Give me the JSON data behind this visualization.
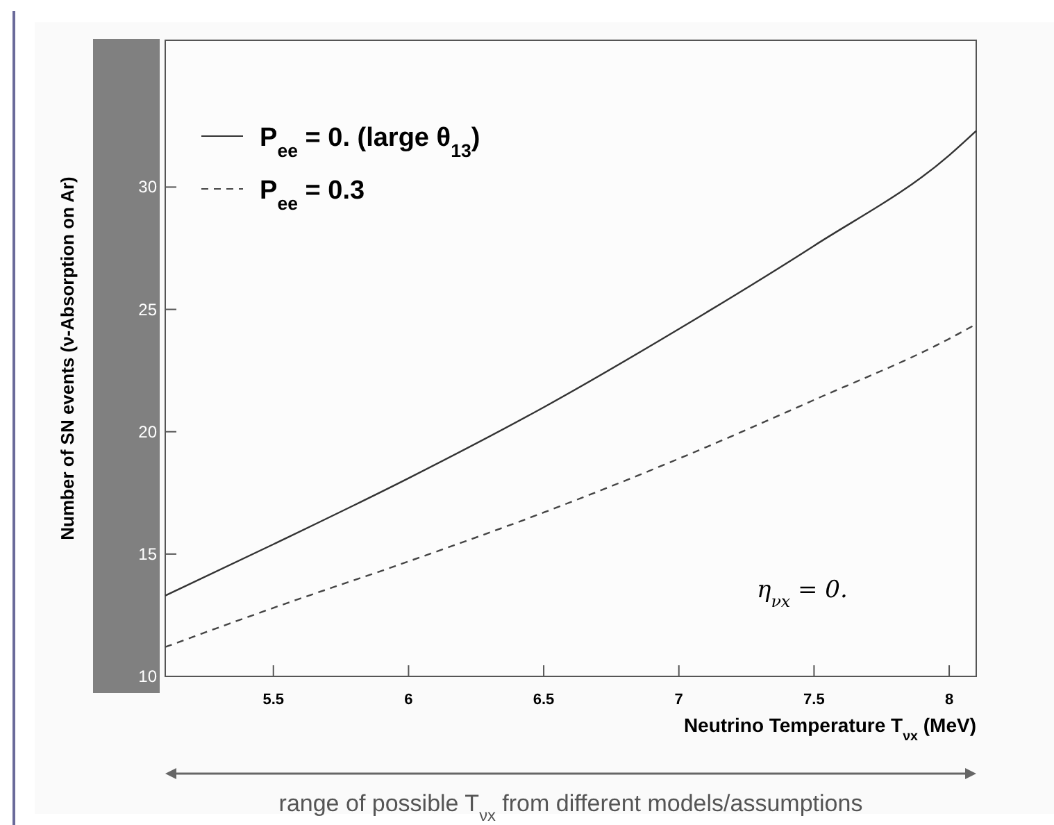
{
  "chart_data": {
    "type": "line",
    "xlabel": "Neutrino Temperature   T$_{νx}$ (MeV)",
    "ylabel": "Number of SN events (ν-Absorption on Ar)",
    "x": [
      5.1,
      5.5,
      6,
      6.5,
      7,
      7.5,
      8,
      8.1
    ],
    "series": [
      {
        "name": "P$_{ee}$ = 0.  (large θ$_{13}$)",
        "color": "#333333",
        "line_style": "solid",
        "values": [
          13.3,
          15.4,
          18.1,
          21.0,
          24.2,
          27.6,
          31.3,
          32.3
        ]
      },
      {
        "name": "P$_{ee}$ = 0.3",
        "color": "#444444",
        "line_style": "dashed",
        "values": [
          11.2,
          12.8,
          14.7,
          16.7,
          18.9,
          21.3,
          23.8,
          24.4
        ]
      }
    ],
    "xlim": [
      5.1,
      8.1
    ],
    "ylim": [
      10,
      36
    ],
    "xticks": [
      5.5,
      6,
      6.5,
      7,
      7.5,
      8
    ],
    "yticks": [
      10,
      15,
      20,
      25,
      30
    ],
    "grid": false,
    "legend": "top left",
    "marker": "none",
    "annotations": [
      "η$_{νx}$ = 0.",
      "range of possible T$_{νx}$ from different models/assumptions"
    ]
  }
}
